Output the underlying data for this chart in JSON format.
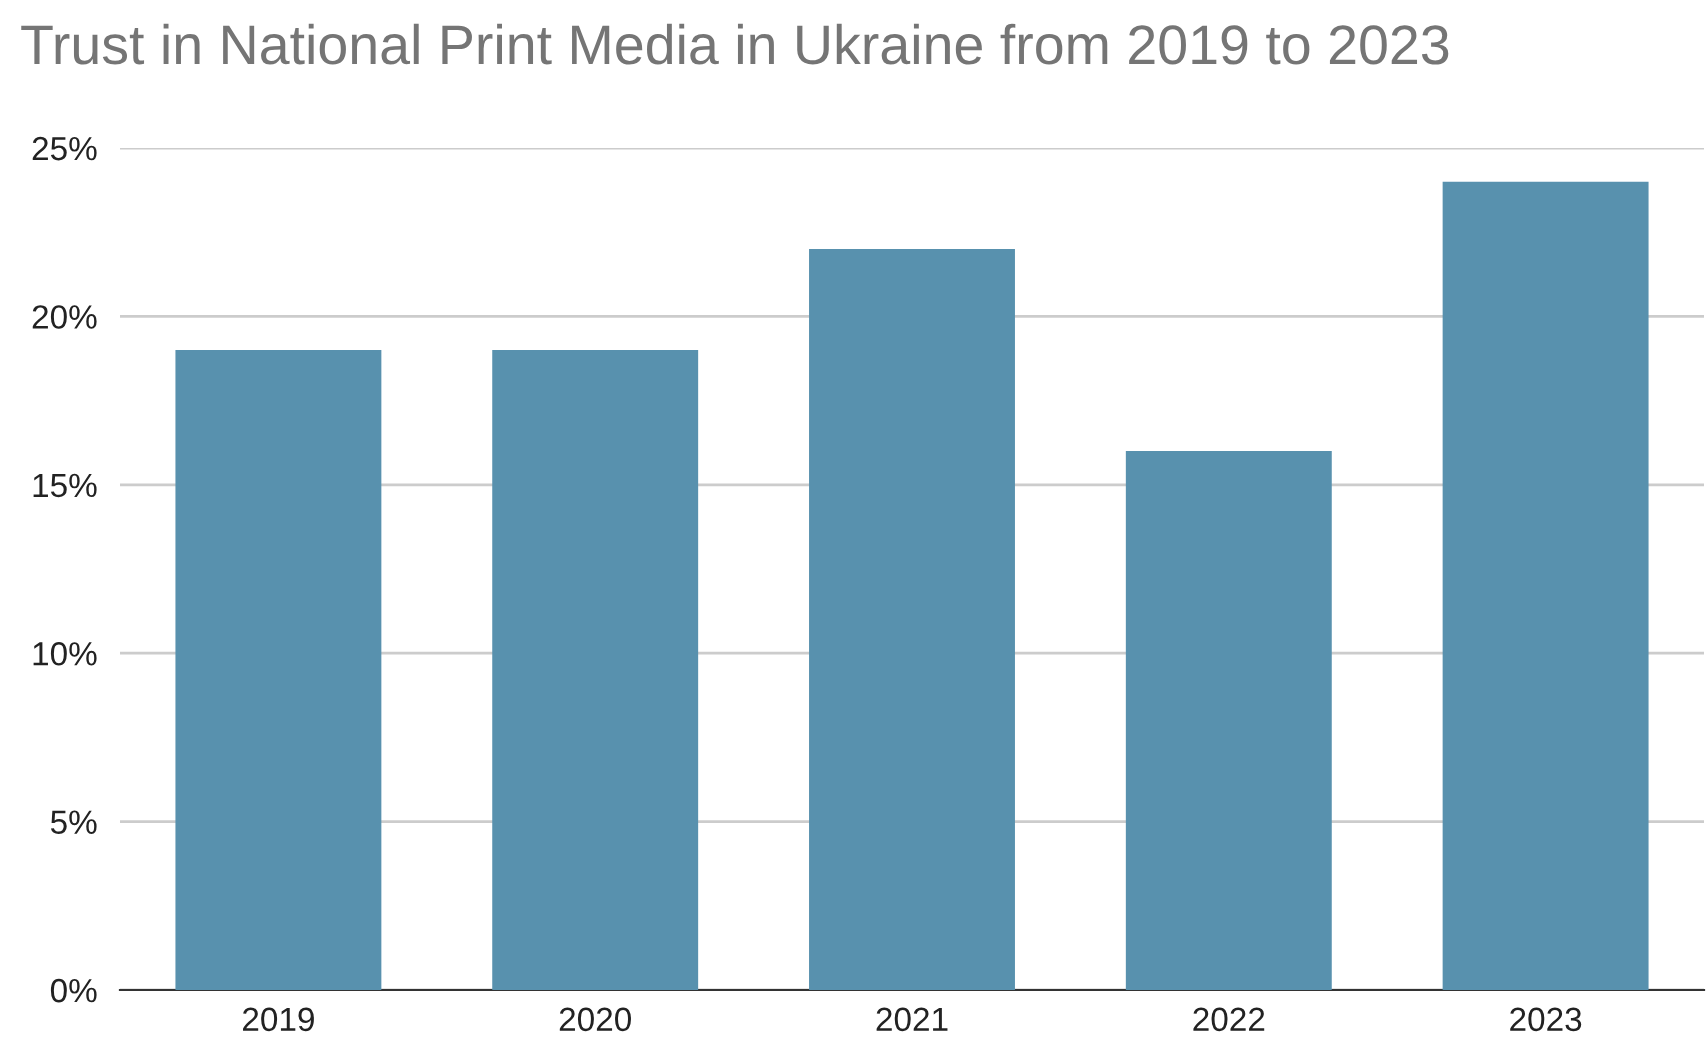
{
  "chart_data": {
    "type": "bar",
    "title": "Trust in National Print Media in Ukraine from 2019 to 2023",
    "categories": [
      "2019",
      "2020",
      "2021",
      "2022",
      "2023"
    ],
    "values": [
      19,
      19,
      22,
      16,
      24
    ],
    "color": "#5891ae",
    "ylim": [
      0,
      25
    ],
    "yticks": [
      {
        "value": 0,
        "label": "0%"
      },
      {
        "value": 5,
        "label": "5%"
      },
      {
        "value": 10,
        "label": "10%"
      },
      {
        "value": 15,
        "label": "15%"
      },
      {
        "value": 20,
        "label": "20%"
      },
      {
        "value": 25,
        "label": "25%"
      }
    ],
    "grid": "y",
    "legend": false
  }
}
